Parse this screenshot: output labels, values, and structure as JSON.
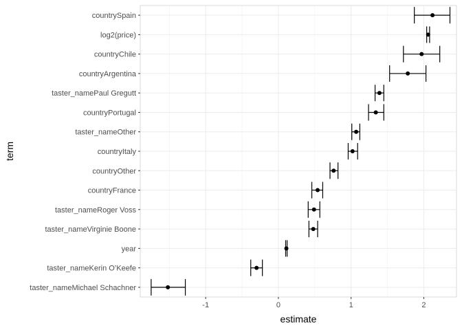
{
  "chart_data": {
    "type": "errorbar",
    "xlabel": "estimate",
    "ylabel": "term",
    "xlim": [
      -1.9,
      2.45
    ],
    "x_ticks": [
      -1,
      0,
      1,
      2
    ],
    "x_tick_labels": [
      "-1",
      "0",
      "1",
      "2"
    ],
    "grid": true,
    "terms": [
      {
        "term": "countrySpain",
        "estimate": 2.12,
        "conf_low": 1.87,
        "conf_high": 2.36
      },
      {
        "term": "log2(price)",
        "estimate": 2.06,
        "conf_low": 2.04,
        "conf_high": 2.08
      },
      {
        "term": "countryChile",
        "estimate": 1.97,
        "conf_low": 1.72,
        "conf_high": 2.22
      },
      {
        "term": "countryArgentina",
        "estimate": 1.78,
        "conf_low": 1.53,
        "conf_high": 2.03
      },
      {
        "term": "taster_namePaul Gregutt",
        "estimate": 1.39,
        "conf_low": 1.33,
        "conf_high": 1.45
      },
      {
        "term": "countryPortugal",
        "estimate": 1.34,
        "conf_low": 1.24,
        "conf_high": 1.45
      },
      {
        "term": "taster_nameOther",
        "estimate": 1.07,
        "conf_low": 1.01,
        "conf_high": 1.12
      },
      {
        "term": "countryItaly",
        "estimate": 1.02,
        "conf_low": 0.96,
        "conf_high": 1.09
      },
      {
        "term": "countryOther",
        "estimate": 0.76,
        "conf_low": 0.71,
        "conf_high": 0.82
      },
      {
        "term": "countryFrance",
        "estimate": 0.54,
        "conf_low": 0.46,
        "conf_high": 0.61
      },
      {
        "term": "taster_nameRoger Voss",
        "estimate": 0.49,
        "conf_low": 0.41,
        "conf_high": 0.57
      },
      {
        "term": "taster_nameVirginie Boone",
        "estimate": 0.48,
        "conf_low": 0.42,
        "conf_high": 0.54
      },
      {
        "term": "year",
        "estimate": 0.11,
        "conf_low": 0.1,
        "conf_high": 0.12
      },
      {
        "term": "taster_nameKerin O’Keefe",
        "estimate": -0.3,
        "conf_low": -0.38,
        "conf_high": -0.22
      },
      {
        "term": "taster_nameMichael Schachner",
        "estimate": -1.52,
        "conf_low": -1.75,
        "conf_high": -1.28
      }
    ]
  }
}
